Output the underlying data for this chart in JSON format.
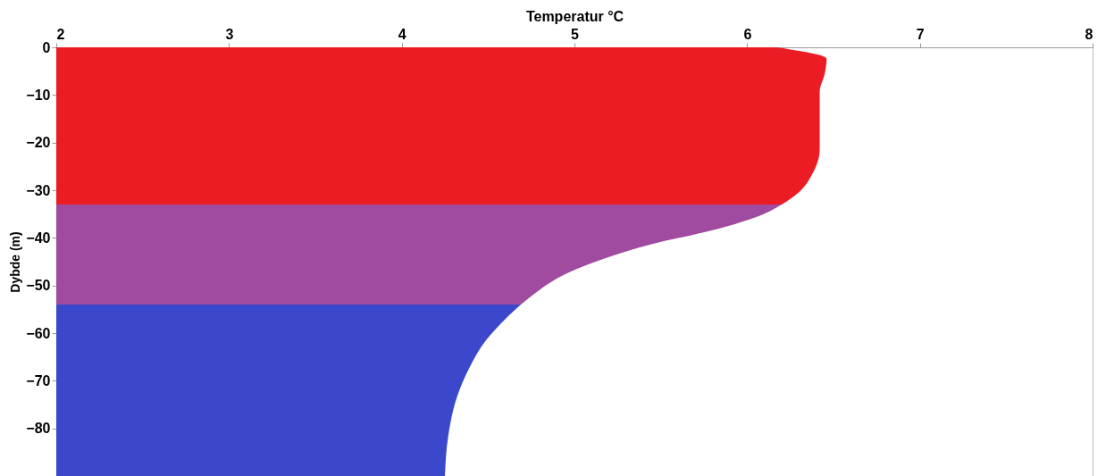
{
  "chart_data": {
    "type": "area",
    "orientation": "horizontal",
    "xlabel": "Temperatur °C",
    "ylabel": "Dybde (m)",
    "xlim": [
      2,
      8
    ],
    "xticks": [
      2,
      3,
      4,
      5,
      6,
      7,
      8
    ],
    "ylim": [
      -90,
      0
    ],
    "yticks": [
      0,
      -10,
      -20,
      -30,
      -40,
      -50,
      -60,
      -70,
      -80
    ],
    "grid": false,
    "series": [
      {
        "color": "#ec1c24",
        "x": [
          0,
          -2.4,
          -5.4,
          -9.4,
          -15.4,
          -21.4,
          -26.4,
          -30.4,
          -33
        ],
        "values": [
          6.17,
          6.46,
          6.45,
          6.42,
          6.42,
          6.42,
          6.38,
          6.3,
          6.2
        ]
      },
      {
        "color": "#a04aa0",
        "x": [
          -33,
          -35.4,
          -38.4,
          -41.4,
          -44.4,
          -47.4,
          -51.4,
          -54
        ],
        "values": [
          6.2,
          6.07,
          5.8,
          5.44,
          5.17,
          4.96,
          4.78,
          4.69
        ]
      },
      {
        "color": "#3c48cc",
        "x": [
          -54,
          -57.4,
          -61.4,
          -67.4,
          -73.4,
          -81.4,
          -90
        ],
        "values": [
          4.69,
          4.59,
          4.49,
          4.39,
          4.32,
          4.27,
          4.25
        ]
      }
    ]
  }
}
